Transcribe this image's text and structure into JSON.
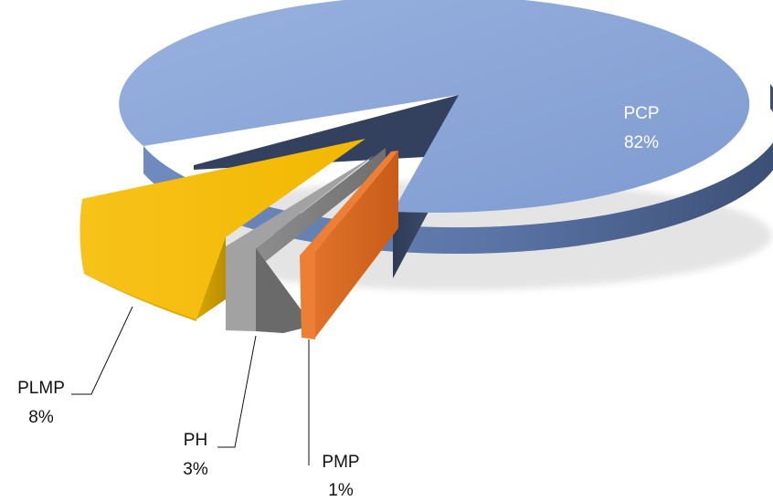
{
  "chart_data": {
    "type": "pie",
    "style": "3d-exploded",
    "categories": [
      "PCP",
      "PLMP",
      "PH",
      "PMP"
    ],
    "values": [
      82,
      8,
      3,
      1
    ],
    "data_labels": [
      {
        "name": "PCP",
        "value": "82%"
      },
      {
        "name": "PLMP",
        "value": "8%"
      },
      {
        "name": "PH",
        "value": "3%"
      },
      {
        "name": "PMP",
        "value": "1%"
      }
    ],
    "colors": {
      "PCP": "#8ea8d8",
      "PLMP": "#f4bc00",
      "PH": "#9b9b9b",
      "PMP": "#ed7d31"
    },
    "legend": "none"
  }
}
